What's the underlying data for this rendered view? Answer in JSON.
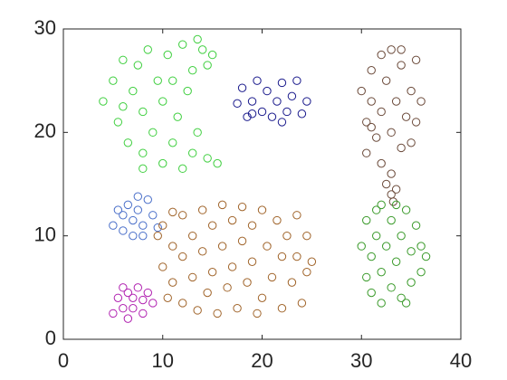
{
  "chart_data": {
    "type": "scatter",
    "xlim": [
      0,
      40
    ],
    "ylim": [
      0,
      30
    ],
    "xticks": [
      0,
      10,
      20,
      30,
      40
    ],
    "yticks": [
      0,
      10,
      20,
      30
    ],
    "series": [
      {
        "color": "#3fcf3f",
        "x": [
          4,
          5,
          5.5,
          6,
          6.5,
          7,
          7.5,
          8,
          8,
          8.5,
          9,
          9.5,
          10,
          10,
          10.5,
          11,
          11.5,
          12,
          12,
          12.5,
          13,
          13,
          13.5,
          14,
          14.5,
          14.5,
          15,
          15.5,
          8,
          6,
          11,
          13.5
        ],
        "y": [
          23,
          25,
          21,
          27,
          19,
          24,
          26.5,
          22,
          18,
          28,
          20,
          25,
          17,
          23,
          27.5,
          19,
          21.5,
          28.5,
          16.5,
          24,
          18,
          26,
          20,
          28,
          17.5,
          26.5,
          27.5,
          17,
          16.5,
          22.5,
          25,
          29
        ]
      },
      {
        "color": "#1a1a8c",
        "x": [
          17.5,
          18,
          18.5,
          19,
          19.5,
          20,
          20.5,
          21,
          21.5,
          22,
          22.5,
          23,
          23.5,
          24,
          24.5,
          19,
          22
        ],
        "y": [
          22.8,
          24.3,
          21.5,
          23,
          25,
          22,
          24,
          21.5,
          23,
          24.8,
          22,
          23.5,
          25,
          21.8,
          23,
          21.8,
          21
        ]
      },
      {
        "color": "#6b4a3a",
        "x": [
          30,
          30.5,
          30.5,
          31,
          31,
          31.5,
          32,
          32,
          32,
          32.5,
          33,
          33,
          33,
          33.5,
          34,
          34,
          34.5,
          35,
          35,
          35.5,
          35.5,
          36,
          32.5,
          33,
          33.2,
          33.5,
          31,
          34
        ],
        "y": [
          24,
          21,
          18,
          26,
          23,
          19.5,
          27.5,
          22,
          17,
          25,
          28,
          20,
          16,
          23,
          26.5,
          18.5,
          21.5,
          24,
          19,
          27,
          21,
          23,
          15,
          14,
          13.3,
          14.5,
          20.5,
          28
        ]
      },
      {
        "color": "#4a6fc9",
        "x": [
          5,
          5.5,
          6,
          6.5,
          7,
          7,
          7.5,
          8,
          8.5,
          9,
          9.5,
          8,
          6,
          7.5
        ],
        "y": [
          11,
          12.5,
          10.5,
          13,
          11.5,
          10,
          12.5,
          11,
          13.5,
          12,
          10.8,
          10,
          12,
          13.8
        ]
      },
      {
        "color": "#a0642a",
        "x": [
          10,
          10,
          10.5,
          11,
          11,
          12,
          12,
          12,
          13,
          13,
          13.5,
          14,
          14,
          14.5,
          15,
          15,
          15.5,
          16,
          16,
          16.5,
          17,
          17,
          17.5,
          18,
          18,
          18.5,
          19,
          19,
          19.5,
          20,
          20,
          20.5,
          21,
          21.5,
          22,
          22,
          22.5,
          23,
          23.5,
          23.5,
          24,
          24.5,
          24.5,
          9.5,
          11,
          25
        ],
        "y": [
          11,
          7,
          4,
          9,
          5.5,
          12,
          8,
          3.5,
          10,
          6,
          2.8,
          12.5,
          8.5,
          4.5,
          11,
          6.5,
          2.5,
          13,
          9,
          5,
          11.5,
          7,
          3,
          12.8,
          9.5,
          5.5,
          11,
          7.5,
          2.5,
          12.5,
          4,
          9,
          6,
          11.5,
          8,
          3,
          10,
          5.5,
          12,
          8,
          3.5,
          10,
          6.5,
          10,
          12.3,
          7.5
        ]
      },
      {
        "color": "#b020b0",
        "x": [
          5,
          5.5,
          6,
          6,
          6.5,
          7,
          7,
          7.5,
          8,
          8,
          8.5,
          9,
          6.5
        ],
        "y": [
          2.5,
          4,
          3,
          5,
          2,
          4,
          3,
          5,
          2.5,
          3.8,
          4.5,
          3.5,
          4.5
        ]
      },
      {
        "color": "#3a9a2a",
        "x": [
          30,
          30.5,
          30.5,
          31,
          31,
          31.5,
          31.5,
          32,
          32,
          32.5,
          33,
          33,
          33.5,
          33.5,
          34,
          34,
          34.5,
          35,
          35,
          35.5,
          36,
          36,
          36.5,
          32,
          34.5
        ],
        "y": [
          9,
          6,
          11.5,
          8,
          4.5,
          12.5,
          10,
          6.5,
          3.5,
          9,
          11.5,
          5,
          13,
          7.5,
          10,
          4,
          12.5,
          8.5,
          5.5,
          11,
          9,
          6.5,
          8,
          13,
          3.5
        ]
      }
    ]
  }
}
